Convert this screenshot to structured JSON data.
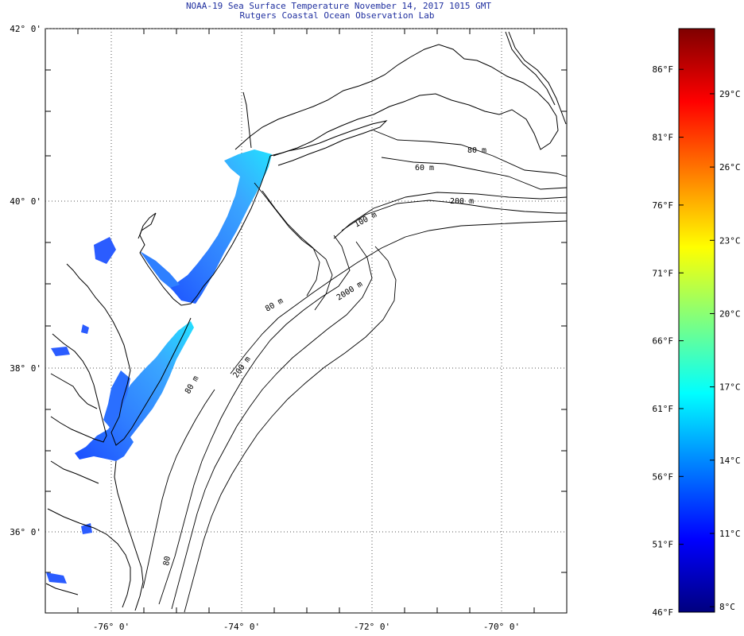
{
  "header": {
    "title": "NOAA-19 Sea Surface Temperature November 14, 2017 1015 GMT",
    "subtitle": "Rutgers Coastal Ocean Observation Lab"
  },
  "map": {
    "lat_ticks": [
      "42° 0'",
      "40° 0'",
      "38° 0'",
      "36° 0'"
    ],
    "lon_ticks": [
      "-76° 0'",
      "-74° 0'",
      "-72° 0'",
      "-70° 0'"
    ],
    "contour_labels": [
      "80 m",
      "60 m",
      "200 m",
      "100 m",
      "2000 m",
      "80 m",
      "200 m",
      "80 m",
      "80"
    ],
    "grid": "dotted"
  },
  "colorbar": {
    "f_labels": [
      "86°F",
      "81°F",
      "76°F",
      "71°F",
      "66°F",
      "61°F",
      "56°F",
      "51°F",
      "46°F"
    ],
    "c_labels": [
      "29°C",
      "26°C",
      "23°C",
      "20°C",
      "17°C",
      "14°C",
      "11°C",
      "8°C"
    ],
    "colors": [
      "#00007f",
      "#0000ff",
      "#007fff",
      "#00ffff",
      "#7fff7f",
      "#ffff00",
      "#ff7f00",
      "#ff0000",
      "#7f0000"
    ]
  }
}
